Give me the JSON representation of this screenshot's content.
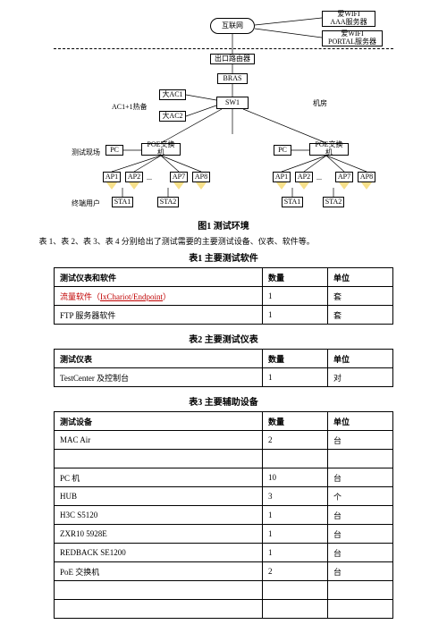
{
  "diagram": {
    "nodes": {
      "internet": "互联网",
      "aaa": "爱WIFI\nAAA服务器",
      "portal": "爱WIFI\nPORTAL服务器",
      "export_router": "出口路由器",
      "bras": "BRAS",
      "ac1": "大AC1",
      "ac2": "大AC2",
      "sw1": "SW1",
      "poe1": "POE交换机",
      "poe2": "POE交换机",
      "pc1": "PC",
      "pc2": "PC",
      "ap1": "AP1",
      "ap2": "AP2",
      "ap7": "AP7",
      "ap8": "AP8",
      "bap1": "AP1",
      "bap2": "AP2",
      "bap7": "AP7",
      "bap8": "AP8",
      "sta1": "STA1",
      "sta2": "STA2",
      "bsta1": "STA1",
      "bsta2": "STA2"
    },
    "labels": {
      "ac_backup": "AC1+1热备",
      "machine_room": "机房",
      "test_site": "测试现场",
      "terminal_user": "终端用户",
      "ap_ell1": "...",
      "ap_ell2": "..."
    }
  },
  "fig_caption": "图1 测试环境",
  "intro_text": "表 1、表 2、表 3、表 4 分别给出了测试需要的主要测试设备、仪表、软件等。",
  "table1": {
    "title": "表1 主要测试软件",
    "head": [
      "测试仪表和软件",
      "数量",
      "单位"
    ],
    "rows": [
      {
        "name_prefix": "流量软件（",
        "name_mid": "IxChariot/Endpoint",
        "name_suffix": "）",
        "qty": "1",
        "unit": "套",
        "link": true
      },
      {
        "name": "FTP 服务器软件",
        "qty": "1",
        "unit": "套"
      }
    ]
  },
  "table2": {
    "title": "表2 主要测试仪表",
    "head": [
      "测试仪表",
      "数量",
      "单位"
    ],
    "rows": [
      {
        "name": "TestCenter 及控制台",
        "qty": "1",
        "unit": "对"
      }
    ]
  },
  "table3": {
    "title": "表3 主要辅助设备",
    "head": [
      "测试设备",
      "数量",
      "单位"
    ],
    "rows": [
      {
        "name": "MAC Air",
        "qty": "2",
        "unit": "台"
      },
      {
        "name": "",
        "qty": "",
        "unit": ""
      },
      {
        "name": "PC 机",
        "qty": "10",
        "unit": "台"
      },
      {
        "name": "HUB",
        "qty": "3",
        "unit": "个"
      },
      {
        "name": "H3C S5120",
        "qty": "1",
        "unit": "台"
      },
      {
        "name": "ZXR10 5928E",
        "qty": "1",
        "unit": "台"
      },
      {
        "name": "REDBACK SE1200",
        "qty": "1",
        "unit": "台"
      },
      {
        "name": "PoE 交换机",
        "qty": "2",
        "unit": "台"
      },
      {
        "name": "",
        "qty": "",
        "unit": ""
      },
      {
        "name": "",
        "qty": "",
        "unit": ""
      }
    ]
  }
}
